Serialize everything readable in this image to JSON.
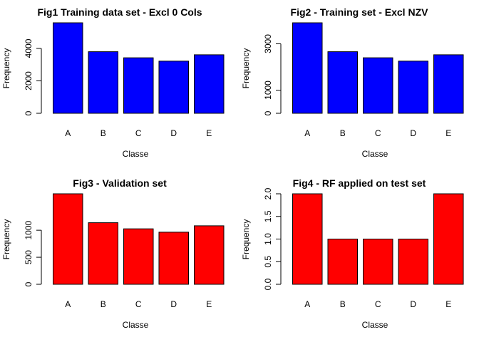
{
  "chart_data": [
    {
      "type": "bar",
      "title": "Fig1 Training data set - Excl 0 Cols",
      "xlabel": "Classe",
      "ylabel": "Frequency",
      "categories": [
        "A",
        "B",
        "C",
        "D",
        "E"
      ],
      "values": [
        5580,
        3797,
        3422,
        3216,
        3607
      ],
      "yticks": [
        0,
        2000,
        4000
      ],
      "ylim": [
        0,
        5580
      ],
      "color": "#0000ff"
    },
    {
      "type": "bar",
      "title": "Fig2 - Training set - Excl NZV",
      "xlabel": "Classe",
      "ylabel": "Frequency",
      "categories": [
        "A",
        "B",
        "C",
        "D",
        "E"
      ],
      "values": [
        3906,
        2658,
        2396,
        2252,
        2525
      ],
      "yticks": [
        0,
        1000,
        3000
      ],
      "ylim": [
        0,
        3906
      ],
      "color": "#0000ff"
    },
    {
      "type": "bar",
      "title": "Fig3 - Validation set",
      "xlabel": "Classe",
      "ylabel": "Frequency",
      "categories": [
        "A",
        "B",
        "C",
        "D",
        "E"
      ],
      "values": [
        1674,
        1139,
        1026,
        964,
        1082
      ],
      "yticks": [
        0,
        500,
        1000
      ],
      "ylim": [
        0,
        1674
      ],
      "color": "#ff0000"
    },
    {
      "type": "bar",
      "title": "Fig4 - RF applied on test set",
      "xlabel": "Classe",
      "ylabel": "Frequency",
      "categories": [
        "A",
        "B",
        "C",
        "D",
        "E"
      ],
      "values": [
        2,
        1,
        1,
        1,
        2
      ],
      "yticks": [
        0.0,
        0.5,
        1.0,
        1.5,
        2.0
      ],
      "ytick_labels": [
        "0.0",
        "0.5",
        "1.0",
        "1.5",
        "2.0"
      ],
      "ylim": [
        0,
        2
      ],
      "color": "#ff0000"
    }
  ]
}
